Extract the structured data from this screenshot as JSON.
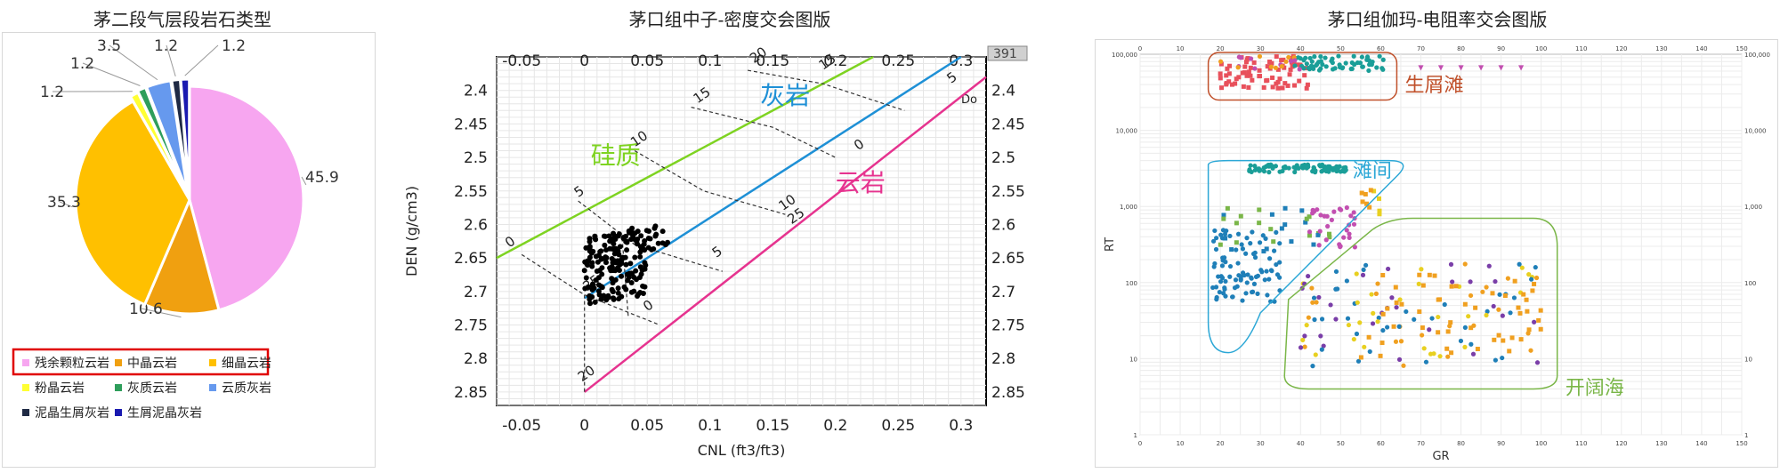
{
  "titles": {
    "pie": "茅二段气层段岩石类型",
    "cnl_den": "茅口组中子-密度交会图版",
    "gr_rt": "茅口组伽玛-电阻率交会图版"
  },
  "chart_data": [
    {
      "type": "pie",
      "title": "茅二段气层段岩石类型",
      "labels": [
        "残余颗粒云岩",
        "中晶云岩",
        "细晶云岩",
        "粉晶云岩",
        "灰质云岩",
        "云质灰岩",
        "泥晶生屑灰岩",
        "生屑泥晶灰岩"
      ],
      "values": [
        45.9,
        10.6,
        35.3,
        1.2,
        1.2,
        3.5,
        1.2,
        1.2
      ],
      "data_labels": [
        "45.9",
        "10.6",
        "35.3",
        "1.2",
        "1.2",
        "3.5",
        "1.2",
        "1.2"
      ],
      "colors": [
        "#f7a6f0",
        "#f0a010",
        "#ffc000",
        "#ffff33",
        "#2e9e5b",
        "#6699ee",
        "#1f2a44",
        "#1a1ab0"
      ],
      "legend_position": "bottom"
    },
    {
      "type": "scatter",
      "title": "茅口组中子-密度交会图版",
      "xlabel": "CNL (ft3/ft3)",
      "ylabel": "DEN (g/cm3)",
      "xlim": [
        -0.07,
        0.32
      ],
      "ylim": [
        2.87,
        2.35
      ],
      "x_ticks": [
        "-0.05",
        "0",
        "0.05",
        "0.1",
        "0.15",
        "0.2",
        "0.25",
        "0.3"
      ],
      "y_ticks": [
        "2.4",
        "2.45",
        "2.5",
        "2.55",
        "2.6",
        "2.65",
        "2.7",
        "2.75",
        "2.8",
        "2.85"
      ],
      "top_right_label": "391",
      "corner_text": "Do",
      "lines": [
        {
          "name": "硅质",
          "color": "#7ed321",
          "x": [
            -0.07,
            0.23
          ],
          "y": [
            2.65,
            2.35
          ]
        },
        {
          "name": "灰岩",
          "color": "#1e90d6",
          "x": [
            0,
            0.3
          ],
          "y": [
            2.71,
            2.35
          ]
        },
        {
          "name": "云岩",
          "color": "#e6338f",
          "x": [
            0,
            0.32
          ],
          "y": [
            2.85,
            2.38
          ]
        }
      ],
      "line_tick_labels": [
        "0",
        "5",
        "10",
        "15",
        "20",
        "25",
        "0",
        "5",
        "10",
        "15",
        "20",
        "25",
        "0",
        "5",
        "10",
        "15"
      ],
      "scatter_color": "#000000",
      "grid": true
    },
    {
      "type": "scatter",
      "title": "茅口组伽玛-电阻率交会图版",
      "xlabel": "GR",
      "ylabel": "RT",
      "xlim": [
        0,
        150
      ],
      "ylim": [
        1,
        100000
      ],
      "y_scale": "log",
      "x_ticks": [
        "0",
        "10",
        "20",
        "30",
        "40",
        "50",
        "60",
        "70",
        "80",
        "90",
        "100",
        "110",
        "120",
        "130",
        "140",
        "150"
      ],
      "y_ticks": [
        "100,000",
        "10,000",
        "1,000",
        "100",
        "10",
        "1"
      ],
      "regions": [
        {
          "name": "生屑滩",
          "color": "#c0502a"
        },
        {
          "name": "滩间",
          "color": "#2ba7d6"
        },
        {
          "name": "开阔海",
          "color": "#7ab648"
        }
      ],
      "point_colors": [
        "#e8505b",
        "#1a9e98",
        "#1f7fb8",
        "#c24fb0",
        "#7ab648",
        "#f0a020",
        "#e8d020",
        "#7a3ea8"
      ],
      "grid": true
    }
  ]
}
